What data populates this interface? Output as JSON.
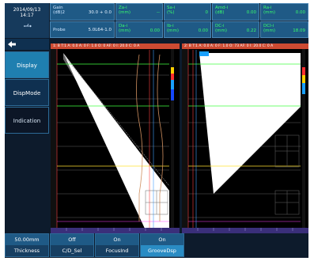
{
  "status": {
    "date": "2014/09/13",
    "time": "14:17"
  },
  "top": {
    "gain": {
      "label": "Gain\n(dB)2",
      "value": "30.0 + 0.0"
    },
    "probe": {
      "label": "Probe",
      "value": "5.0L64-1.0"
    },
    "r1": [
      {
        "label": "Za-i\n(mm)",
        "value": "--"
      },
      {
        "label": "Sa-i\n(%)",
        "value": "0"
      },
      {
        "label": "Amd-i\n(dB)",
        "value": "0.00"
      },
      {
        "label": "Ra-i\n(mm)",
        "value": "0.00"
      }
    ],
    "r2": [
      {
        "label": "Da-i\n(mm)",
        "value": "0.00"
      },
      {
        "label": "Ib-i\n(mm)",
        "value": "0.00"
      },
      {
        "label": "DC-i\n(mm)",
        "value": "0.22"
      },
      {
        "label": "DCI-i\n(mm)",
        "value": "18.09"
      }
    ]
  },
  "side_menu": [
    "Display",
    "DispMode",
    "Indication"
  ],
  "panels": [
    {
      "header": "1: B  T:1  A: 0.0  A: 0 F: 1.0  O: 0  AF: 0  I: 20.0 C: 0  A"
    },
    {
      "header": "2: B  T:1  A:  0.0  A: 0 F: 1.0  O: 73  AF: 0  I: 20.0 C: 0  A"
    }
  ],
  "bottom": [
    {
      "value": "50.00mm",
      "label": "Thickness"
    },
    {
      "value": "Off",
      "label": "C/D_Sel"
    },
    {
      "value": "On",
      "label": "FocusInd"
    },
    {
      "value": "On",
      "label": "GrooveDsp"
    }
  ]
}
